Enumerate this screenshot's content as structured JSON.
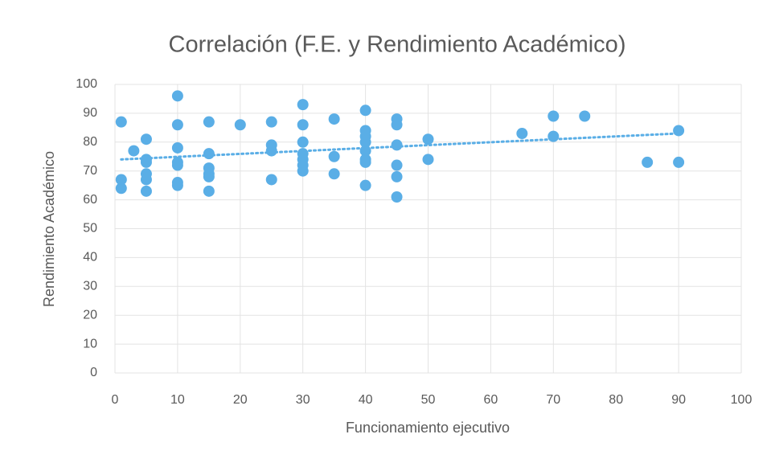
{
  "chart_data": {
    "type": "scatter",
    "title": "Correlación (F.E. y Rendimiento Académico)",
    "x_label": "Funcionamiento ejecutivo",
    "y_label": "Rendimiento Académico",
    "color": "#5aaee6",
    "x": [
      1,
      1,
      1,
      3,
      5,
      5,
      5,
      5,
      5,
      5,
      10,
      10,
      10,
      10,
      10,
      10,
      10,
      15,
      15,
      15,
      15,
      15,
      15,
      20,
      25,
      25,
      25,
      25,
      30,
      30,
      30,
      30,
      30,
      30,
      30,
      35,
      35,
      35,
      40,
      40,
      40,
      40,
      40,
      40,
      40,
      40,
      45,
      45,
      45,
      45,
      45,
      45,
      50,
      50,
      65,
      70,
      70,
      75,
      85,
      90,
      90
    ],
    "values": [
      87,
      67,
      64,
      77,
      81,
      74,
      73,
      69,
      67,
      63,
      96,
      86,
      78,
      73,
      72,
      66,
      65,
      87,
      76,
      71,
      69,
      68,
      63,
      86,
      87,
      79,
      77,
      67,
      93,
      86,
      80,
      76,
      74,
      72,
      70,
      88,
      75,
      69,
      91,
      84,
      82,
      80,
      77,
      74,
      73,
      65,
      88,
      86,
      79,
      72,
      68,
      61,
      81,
      74,
      83,
      89,
      82,
      89,
      73,
      84,
      73
    ],
    "trendline": {
      "x": [
        1,
        90
      ],
      "values": [
        74,
        83
      ]
    },
    "xlim": [
      0,
      100
    ],
    "xticks": [
      0,
      10,
      20,
      30,
      40,
      50,
      60,
      70,
      80,
      90,
      100
    ],
    "ylim": [
      0,
      100
    ],
    "yticks": [
      0,
      10,
      20,
      30,
      40,
      50,
      60,
      70,
      80,
      90,
      100
    ],
    "grid": true
  }
}
